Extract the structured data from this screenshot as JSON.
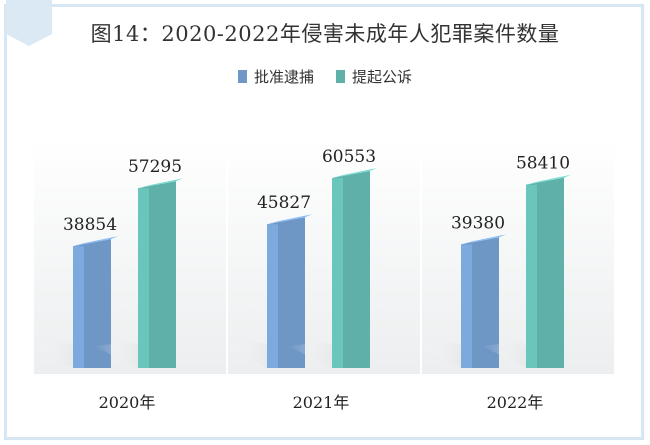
{
  "chart_data": {
    "type": "bar",
    "title": "图14：2020-2022年侵害未成年人犯罪案件数量",
    "categories": [
      "2020年",
      "2021年",
      "2022年"
    ],
    "series": [
      {
        "name": "批准逮捕",
        "values": [
          38854,
          45827,
          39380
        ],
        "color": "#6f97c6"
      },
      {
        "name": "提起公诉",
        "values": [
          57295,
          60553,
          58410
        ],
        "color": "#5fb0a8"
      }
    ],
    "xlabel": "",
    "ylabel": "",
    "ylim": [
      0,
      70000
    ],
    "grid": false,
    "legend_position": "top"
  }
}
